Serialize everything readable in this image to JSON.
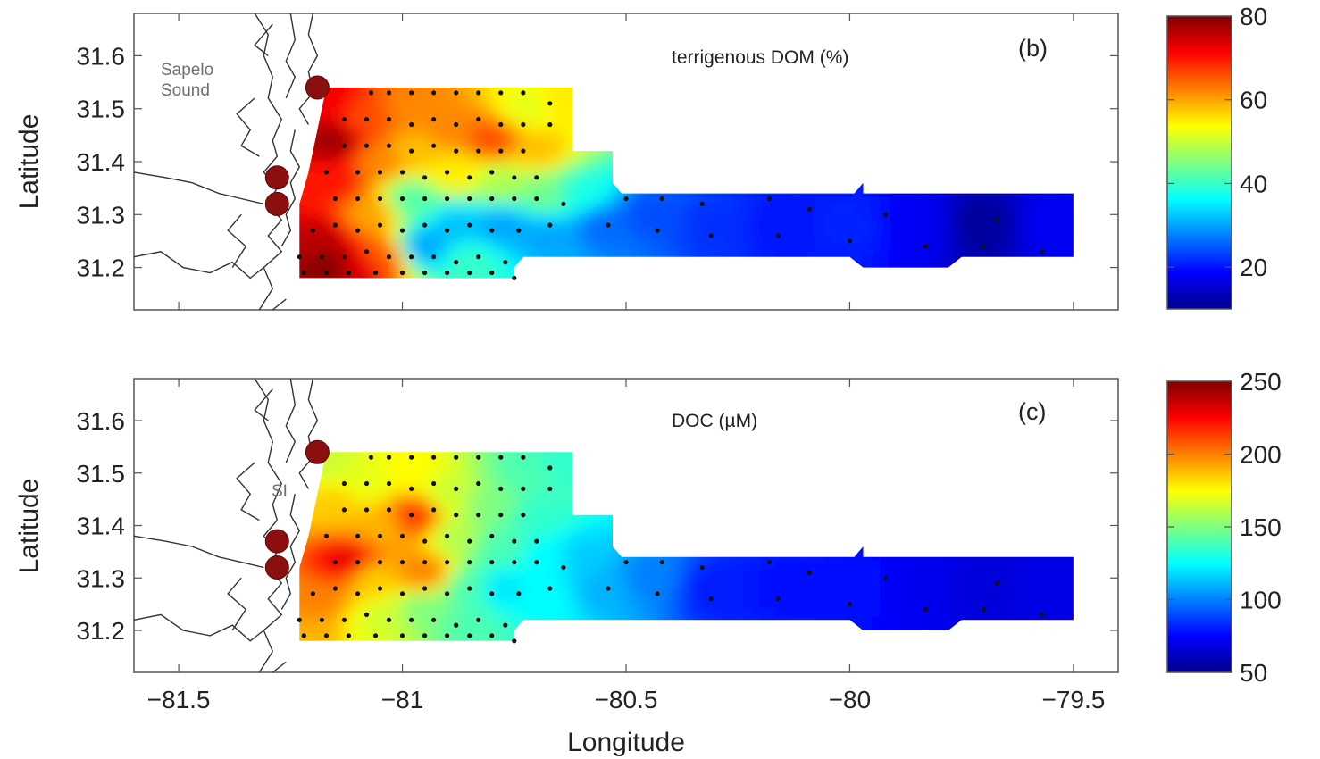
{
  "xlabel": "Longitude",
  "colormap": "jet",
  "chart_data": [
    {
      "type": "heatmap",
      "panel_label": "(b)",
      "annotation": "terrigenous DOM (%)",
      "ylabel": "Latitude",
      "xlim": [
        -81.6,
        -79.4
      ],
      "ylim": [
        31.12,
        31.68
      ],
      "xticks": [
        -81.5,
        -81,
        -80.5,
        -80,
        -79.5
      ],
      "yticks": [
        31.2,
        31.3,
        31.4,
        31.5,
        31.6
      ],
      "ytick_labels": [
        "31.2",
        "31.3",
        "31.4",
        "31.5",
        "31.6"
      ],
      "colorbar": {
        "min": 10,
        "max": 80,
        "ticks": [
          20,
          40,
          60,
          80
        ]
      },
      "place_labels": [
        {
          "text": "Sapelo",
          "lon": -81.46,
          "lat": 31.61
        },
        {
          "text": "Sound",
          "lon": -81.46,
          "lat": 31.57
        }
      ],
      "field_points": [
        {
          "lon": -81.17,
          "lat": 31.52,
          "v": 72
        },
        {
          "lon": -81.15,
          "lat": 31.44,
          "v": 78
        },
        {
          "lon": -81.15,
          "lat": 31.36,
          "v": 70
        },
        {
          "lon": -81.18,
          "lat": 31.25,
          "v": 76
        },
        {
          "lon": -81.16,
          "lat": 31.2,
          "v": 80
        },
        {
          "lon": -81.1,
          "lat": 31.2,
          "v": 74
        },
        {
          "lon": -81.08,
          "lat": 31.48,
          "v": 66
        },
        {
          "lon": -81.05,
          "lat": 31.4,
          "v": 62
        },
        {
          "lon": -81.07,
          "lat": 31.3,
          "v": 60
        },
        {
          "lon": -81.05,
          "lat": 31.22,
          "v": 65
        },
        {
          "lon": -80.98,
          "lat": 31.5,
          "v": 62
        },
        {
          "lon": -80.97,
          "lat": 31.42,
          "v": 58
        },
        {
          "lon": -80.98,
          "lat": 31.33,
          "v": 42
        },
        {
          "lon": -80.95,
          "lat": 31.24,
          "v": 30
        },
        {
          "lon": -80.9,
          "lat": 31.46,
          "v": 62
        },
        {
          "lon": -80.88,
          "lat": 31.38,
          "v": 55
        },
        {
          "lon": -80.88,
          "lat": 31.28,
          "v": 32
        },
        {
          "lon": -80.85,
          "lat": 31.21,
          "v": 40
        },
        {
          "lon": -80.8,
          "lat": 31.44,
          "v": 66
        },
        {
          "lon": -80.78,
          "lat": 31.36,
          "v": 48
        },
        {
          "lon": -80.78,
          "lat": 31.28,
          "v": 30
        },
        {
          "lon": -80.72,
          "lat": 31.5,
          "v": 52
        },
        {
          "lon": -80.7,
          "lat": 31.42,
          "v": 58
        },
        {
          "lon": -80.68,
          "lat": 31.34,
          "v": 44
        },
        {
          "lon": -80.68,
          "lat": 31.26,
          "v": 30
        },
        {
          "lon": -80.64,
          "lat": 31.52,
          "v": 55
        },
        {
          "lon": -80.6,
          "lat": 31.34,
          "v": 38
        },
        {
          "lon": -80.55,
          "lat": 31.28,
          "v": 26
        },
        {
          "lon": -80.45,
          "lat": 31.3,
          "v": 24
        },
        {
          "lon": -80.3,
          "lat": 31.28,
          "v": 22
        },
        {
          "lon": -80.15,
          "lat": 31.28,
          "v": 20
        },
        {
          "lon": -80.0,
          "lat": 31.28,
          "v": 21
        },
        {
          "lon": -79.85,
          "lat": 31.28,
          "v": 18
        },
        {
          "lon": -79.7,
          "lat": 31.28,
          "v": 12
        },
        {
          "lon": -79.55,
          "lat": 31.28,
          "v": 18
        }
      ]
    },
    {
      "type": "heatmap",
      "panel_label": "(c)",
      "annotation": "DOC (µM)",
      "ylabel": "Latitude",
      "xlim": [
        -81.6,
        -79.4
      ],
      "ylim": [
        31.12,
        31.68
      ],
      "xticks": [
        -81.5,
        -81,
        -80.5,
        -80,
        -79.5
      ],
      "xtick_labels": [
        "−81.5",
        "−81",
        "−80.5",
        "−80",
        "−79.5"
      ],
      "yticks": [
        31.2,
        31.3,
        31.4,
        31.5,
        31.6
      ],
      "ytick_labels": [
        "31.2",
        "31.3",
        "31.4",
        "31.5",
        "31.6"
      ],
      "colorbar": {
        "min": 50,
        "max": 250,
        "ticks": [
          50,
          100,
          150,
          200,
          250
        ]
      },
      "place_labels": [
        {
          "text": "SI",
          "lon": -81.26,
          "lat": 31.43
        }
      ],
      "field_points": [
        {
          "lon": -81.17,
          "lat": 31.52,
          "v": 165
        },
        {
          "lon": -81.15,
          "lat": 31.44,
          "v": 185
        },
        {
          "lon": -81.12,
          "lat": 31.33,
          "v": 230
        },
        {
          "lon": -81.18,
          "lat": 31.25,
          "v": 200
        },
        {
          "lon": -81.16,
          "lat": 31.2,
          "v": 190
        },
        {
          "lon": -81.1,
          "lat": 31.2,
          "v": 170
        },
        {
          "lon": -81.08,
          "lat": 31.48,
          "v": 170
        },
        {
          "lon": -81.05,
          "lat": 31.4,
          "v": 190
        },
        {
          "lon": -81.07,
          "lat": 31.3,
          "v": 185
        },
        {
          "lon": -81.05,
          "lat": 31.22,
          "v": 165
        },
        {
          "lon": -80.98,
          "lat": 31.5,
          "v": 175
        },
        {
          "lon": -80.97,
          "lat": 31.42,
          "v": 215
        },
        {
          "lon": -80.95,
          "lat": 31.31,
          "v": 200
        },
        {
          "lon": -80.95,
          "lat": 31.24,
          "v": 150
        },
        {
          "lon": -80.9,
          "lat": 31.46,
          "v": 165
        },
        {
          "lon": -80.88,
          "lat": 31.38,
          "v": 160
        },
        {
          "lon": -80.85,
          "lat": 31.28,
          "v": 140
        },
        {
          "lon": -80.85,
          "lat": 31.21,
          "v": 140
        },
        {
          "lon": -80.8,
          "lat": 31.44,
          "v": 150
        },
        {
          "lon": -80.78,
          "lat": 31.36,
          "v": 140
        },
        {
          "lon": -80.78,
          "lat": 31.28,
          "v": 120
        },
        {
          "lon": -80.72,
          "lat": 31.5,
          "v": 140
        },
        {
          "lon": -80.7,
          "lat": 31.42,
          "v": 135
        },
        {
          "lon": -80.68,
          "lat": 31.34,
          "v": 125
        },
        {
          "lon": -80.68,
          "lat": 31.26,
          "v": 125
        },
        {
          "lon": -80.64,
          "lat": 31.52,
          "v": 135
        },
        {
          "lon": -80.6,
          "lat": 31.34,
          "v": 115
        },
        {
          "lon": -80.55,
          "lat": 31.28,
          "v": 110
        },
        {
          "lon": -80.45,
          "lat": 31.3,
          "v": 100
        },
        {
          "lon": -80.3,
          "lat": 31.28,
          "v": 80
        },
        {
          "lon": -80.15,
          "lat": 31.28,
          "v": 78
        },
        {
          "lon": -80.0,
          "lat": 31.28,
          "v": 78
        },
        {
          "lon": -79.85,
          "lat": 31.28,
          "v": 72
        },
        {
          "lon": -79.7,
          "lat": 31.28,
          "v": 68
        },
        {
          "lon": -79.55,
          "lat": 31.28,
          "v": 70
        }
      ]
    }
  ],
  "survey_domain": [
    [
      -81.23,
      31.18
    ],
    [
      -81.23,
      31.32
    ],
    [
      -81.21,
      31.38
    ],
    [
      -81.19,
      31.46
    ],
    [
      -81.17,
      31.54
    ],
    [
      -80.62,
      31.54
    ],
    [
      -80.62,
      31.42
    ],
    [
      -80.53,
      31.42
    ],
    [
      -80.53,
      31.36
    ],
    [
      -80.51,
      31.34
    ],
    [
      -79.99,
      31.34
    ],
    [
      -79.97,
      31.36
    ],
    [
      -79.97,
      31.34
    ],
    [
      -79.5,
      31.34
    ],
    [
      -79.5,
      31.22
    ],
    [
      -79.75,
      31.22
    ],
    [
      -79.78,
      31.2
    ],
    [
      -79.97,
      31.2
    ],
    [
      -80.0,
      31.22
    ],
    [
      -80.73,
      31.22
    ],
    [
      -80.75,
      31.2
    ],
    [
      -80.75,
      31.18
    ]
  ],
  "stations": [
    [
      -81.07,
      31.53
    ],
    [
      -81.03,
      31.53
    ],
    [
      -80.98,
      31.53
    ],
    [
      -80.93,
      31.53
    ],
    [
      -80.88,
      31.53
    ],
    [
      -80.83,
      31.53
    ],
    [
      -80.78,
      31.53
    ],
    [
      -80.73,
      31.53
    ],
    [
      -80.67,
      31.51
    ],
    [
      -81.13,
      31.48
    ],
    [
      -81.08,
      31.48
    ],
    [
      -81.03,
      31.48
    ],
    [
      -80.98,
      31.47
    ],
    [
      -80.93,
      31.48
    ],
    [
      -80.88,
      31.47
    ],
    [
      -80.83,
      31.48
    ],
    [
      -80.78,
      31.47
    ],
    [
      -80.73,
      31.47
    ],
    [
      -80.67,
      31.47
    ],
    [
      -81.13,
      31.43
    ],
    [
      -81.08,
      31.43
    ],
    [
      -81.03,
      31.43
    ],
    [
      -80.98,
      31.42
    ],
    [
      -80.93,
      31.43
    ],
    [
      -80.88,
      31.42
    ],
    [
      -80.83,
      31.42
    ],
    [
      -80.78,
      31.42
    ],
    [
      -80.73,
      31.42
    ],
    [
      -81.17,
      31.38
    ],
    [
      -81.1,
      31.38
    ],
    [
      -81.05,
      31.38
    ],
    [
      -81.0,
      31.38
    ],
    [
      -80.95,
      31.37
    ],
    [
      -80.9,
      31.38
    ],
    [
      -80.85,
      31.37
    ],
    [
      -80.8,
      31.38
    ],
    [
      -80.75,
      31.37
    ],
    [
      -80.7,
      31.37
    ],
    [
      -81.15,
      31.33
    ],
    [
      -81.1,
      31.33
    ],
    [
      -81.05,
      31.33
    ],
    [
      -81.0,
      31.33
    ],
    [
      -80.95,
      31.33
    ],
    [
      -80.9,
      31.33
    ],
    [
      -80.85,
      31.33
    ],
    [
      -80.8,
      31.33
    ],
    [
      -80.75,
      31.33
    ],
    [
      -80.7,
      31.33
    ],
    [
      -80.64,
      31.32
    ],
    [
      -81.2,
      31.27
    ],
    [
      -81.15,
      31.28
    ],
    [
      -81.1,
      31.27
    ],
    [
      -81.05,
      31.28
    ],
    [
      -81.0,
      31.27
    ],
    [
      -80.95,
      31.28
    ],
    [
      -80.9,
      31.27
    ],
    [
      -80.85,
      31.28
    ],
    [
      -80.8,
      31.27
    ],
    [
      -80.74,
      31.27
    ],
    [
      -80.67,
      31.28
    ],
    [
      -81.23,
      31.22
    ],
    [
      -81.18,
      31.22
    ],
    [
      -81.13,
      31.22
    ],
    [
      -81.08,
      31.23
    ],
    [
      -81.03,
      31.22
    ],
    [
      -80.98,
      31.22
    ],
    [
      -80.93,
      31.22
    ],
    [
      -80.88,
      31.21
    ],
    [
      -80.83,
      31.22
    ],
    [
      -80.77,
      31.21
    ],
    [
      -81.22,
      31.19
    ],
    [
      -81.17,
      31.19
    ],
    [
      -81.12,
      31.19
    ],
    [
      -81.06,
      31.19
    ],
    [
      -81.0,
      31.19
    ],
    [
      -80.95,
      31.19
    ],
    [
      -80.9,
      31.19
    ],
    [
      -80.85,
      31.19
    ],
    [
      -80.8,
      31.19
    ],
    [
      -80.75,
      31.18
    ],
    [
      -80.5,
      31.33
    ],
    [
      -80.42,
      31.33
    ],
    [
      -80.33,
      31.32
    ],
    [
      -80.18,
      31.33
    ],
    [
      -80.09,
      31.31
    ],
    [
      -79.92,
      31.3
    ],
    [
      -79.67,
      31.29
    ],
    [
      -80.54,
      31.28
    ],
    [
      -80.43,
      31.27
    ],
    [
      -80.31,
      31.26
    ],
    [
      -80.16,
      31.26
    ],
    [
      -80.0,
      31.25
    ],
    [
      -79.83,
      31.24
    ],
    [
      -79.7,
      31.24
    ],
    [
      -79.57,
      31.23
    ]
  ],
  "river_sites": [
    [
      -81.19,
      31.54
    ],
    [
      -81.28,
      31.37
    ],
    [
      -81.28,
      31.32
    ]
  ],
  "coastline": [
    [
      [
        -81.33,
        31.68
      ],
      [
        -81.3,
        31.64
      ],
      [
        -81.31,
        31.6
      ],
      [
        -81.29,
        31.56
      ],
      [
        -81.3,
        31.52
      ],
      [
        -81.27,
        31.48
      ],
      [
        -81.29,
        31.44
      ],
      [
        -81.28,
        31.41
      ],
      [
        -81.31,
        31.38
      ],
      [
        -81.28,
        31.35
      ],
      [
        -81.3,
        31.32
      ],
      [
        -81.27,
        31.29
      ],
      [
        -81.3,
        31.26
      ],
      [
        -81.27,
        31.23
      ],
      [
        -81.31,
        31.2
      ],
      [
        -81.29,
        31.16
      ],
      [
        -81.32,
        31.12
      ]
    ],
    [
      [
        -81.2,
        31.68
      ],
      [
        -81.21,
        31.64
      ],
      [
        -81.19,
        31.6
      ],
      [
        -81.21,
        31.57
      ],
      [
        -81.2,
        31.53
      ],
      [
        -81.23,
        31.5
      ],
      [
        -81.21,
        31.47
      ]
    ],
    [
      [
        -81.25,
        31.68
      ],
      [
        -81.24,
        31.63
      ],
      [
        -81.26,
        31.59
      ],
      [
        -81.24,
        31.56
      ],
      [
        -81.26,
        31.52
      ]
    ],
    [
      [
        -81.24,
        31.46
      ],
      [
        -81.25,
        31.42
      ],
      [
        -81.23,
        31.39
      ],
      [
        -81.25,
        31.36
      ],
      [
        -81.24,
        31.33
      ],
      [
        -81.26,
        31.3
      ],
      [
        -81.25,
        31.27
      ],
      [
        -81.27,
        31.24
      ]
    ],
    [
      [
        -81.6,
        31.38
      ],
      [
        -81.53,
        31.37
      ],
      [
        -81.47,
        31.36
      ],
      [
        -81.41,
        31.34
      ],
      [
        -81.36,
        31.33
      ],
      [
        -81.31,
        31.32
      ]
    ],
    [
      [
        -81.6,
        31.22
      ],
      [
        -81.54,
        31.23
      ],
      [
        -81.49,
        31.2
      ],
      [
        -81.43,
        31.19
      ],
      [
        -81.38,
        31.21
      ],
      [
        -81.34,
        31.18
      ],
      [
        -81.31,
        31.2
      ]
    ],
    [
      [
        -81.36,
        31.3
      ],
      [
        -81.39,
        31.27
      ],
      [
        -81.35,
        31.24
      ],
      [
        -81.38,
        31.2
      ]
    ],
    [
      [
        -81.33,
        31.52
      ],
      [
        -81.37,
        31.49
      ],
      [
        -81.34,
        31.46
      ],
      [
        -81.36,
        31.43
      ],
      [
        -81.32,
        31.41
      ]
    ],
    [
      [
        -81.29,
        31.66
      ],
      [
        -81.33,
        31.62
      ],
      [
        -81.3,
        31.6
      ]
    ],
    [
      [
        -81.26,
        31.14
      ],
      [
        -81.29,
        31.12
      ]
    ]
  ]
}
